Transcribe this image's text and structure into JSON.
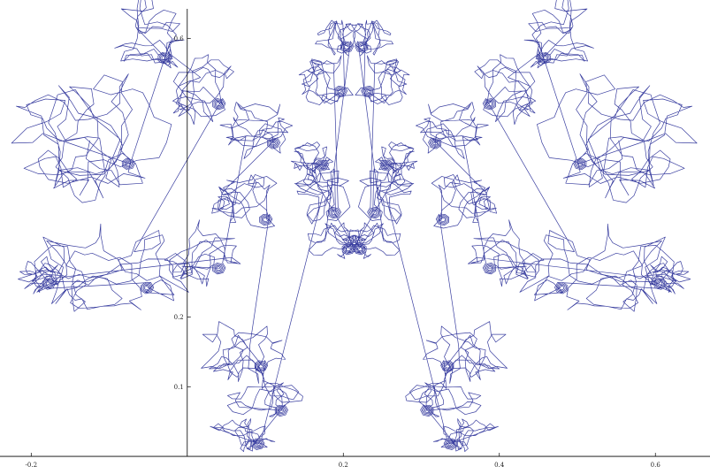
{
  "chart_data": {
    "type": "line",
    "title": "",
    "xlabel": "",
    "ylabel": "",
    "xlim": [
      -0.24,
      0.67
    ],
    "ylim": [
      -0.005,
      0.655
    ],
    "x_ticks": [
      {
        "value": -0.2,
        "label": "-0.2"
      },
      {
        "value": 0.2,
        "label": "0.2"
      },
      {
        "value": 0.4,
        "label": "0.4"
      },
      {
        "value": 0.6,
        "label": "0.6"
      }
    ],
    "y_ticks": [
      {
        "value": 0.1,
        "label": "0.1"
      },
      {
        "value": 0.2,
        "label": "0.2"
      },
      {
        "value": 0.6,
        "label": "0.6"
      }
    ],
    "grid": false,
    "legend": "none",
    "series": [
      {
        "color": "#3a3fa0",
        "symmetry_axis_x": 0.214,
        "clusters": [
          {
            "x": -0.12,
            "y": 0.46,
            "rx": 0.11,
            "ry": 0.1
          },
          {
            "x": -0.05,
            "y": 0.6,
            "rx": 0.05,
            "ry": 0.07
          },
          {
            "x": 0.02,
            "y": 0.53,
            "rx": 0.05,
            "ry": 0.06
          },
          {
            "x": -0.1,
            "y": 0.27,
            "rx": 0.12,
            "ry": 0.07
          },
          {
            "x": -0.19,
            "y": 0.26,
            "rx": 0.03,
            "ry": 0.03
          },
          {
            "x": 0.02,
            "y": 0.29,
            "rx": 0.05,
            "ry": 0.05
          },
          {
            "x": 0.09,
            "y": 0.47,
            "rx": 0.05,
            "ry": 0.05
          },
          {
            "x": 0.08,
            "y": 0.36,
            "rx": 0.05,
            "ry": 0.05
          },
          {
            "x": 0.07,
            "y": 0.15,
            "rx": 0.06,
            "ry": 0.05
          },
          {
            "x": 0.1,
            "y": 0.08,
            "rx": 0.05,
            "ry": 0.035
          },
          {
            "x": 0.07,
            "y": 0.03,
            "rx": 0.05,
            "ry": 0.03
          },
          {
            "x": 0.17,
            "y": 0.37,
            "rx": 0.045,
            "ry": 0.05
          },
          {
            "x": 0.18,
            "y": 0.54,
            "rx": 0.04,
            "ry": 0.04
          },
          {
            "x": 0.19,
            "y": 0.6,
            "rx": 0.035,
            "ry": 0.03
          },
          {
            "x": 0.19,
            "y": 0.31,
            "rx": 0.04,
            "ry": 0.03
          },
          {
            "x": 0.16,
            "y": 0.43,
            "rx": 0.03,
            "ry": 0.03
          }
        ]
      }
    ]
  }
}
